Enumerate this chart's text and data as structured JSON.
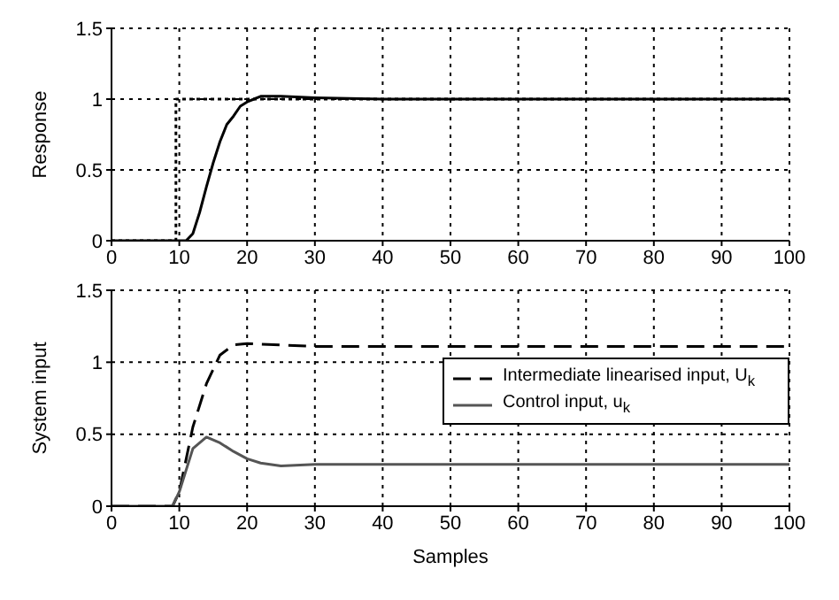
{
  "chart_data": [
    {
      "type": "line",
      "ylabel": "Response",
      "xlim": [
        0,
        100
      ],
      "ylim": [
        0,
        1.5
      ],
      "xticks": [
        0,
        10,
        20,
        30,
        40,
        50,
        60,
        70,
        80,
        90,
        100
      ],
      "yticks": [
        0,
        0.5,
        1,
        1.5
      ],
      "grid": true,
      "legend": false,
      "series": [
        {
          "color": "#000000",
          "line_style": "dotted",
          "x": [
            0,
            9.5,
            9.5,
            100
          ],
          "values": [
            0,
            0,
            1,
            1
          ]
        },
        {
          "color": "#000000",
          "line_style": "solid",
          "x": [
            0,
            11,
            12,
            13,
            14,
            15,
            16,
            17,
            18,
            19,
            20,
            21,
            22,
            25,
            30,
            40,
            100
          ],
          "values": [
            0,
            0,
            0.05,
            0.2,
            0.38,
            0.55,
            0.7,
            0.82,
            0.88,
            0.95,
            0.98,
            1,
            1.02,
            1.02,
            1.01,
            1,
            1
          ]
        }
      ]
    },
    {
      "type": "line",
      "xlabel": "Samples",
      "ylabel": "System input",
      "xlim": [
        0,
        100
      ],
      "ylim": [
        0,
        1.5
      ],
      "xticks": [
        0,
        10,
        20,
        30,
        40,
        50,
        60,
        70,
        80,
        90,
        100
      ],
      "yticks": [
        0,
        0.5,
        1,
        1.5
      ],
      "grid": true,
      "legend": "right",
      "series": [
        {
          "name": "Intermediate linearised input, U$_{k}$",
          "color": "#000000",
          "line_style": "dashed",
          "x": [
            0,
            9,
            10,
            12,
            14,
            16,
            18,
            20,
            25,
            30,
            100
          ],
          "values": [
            0,
            0,
            0.1,
            0.55,
            0.85,
            1.05,
            1.12,
            1.13,
            1.12,
            1.11,
            1.11
          ]
        },
        {
          "name": "Control input, u$_{k}$",
          "color": "#555555",
          "line_style": "solid",
          "x": [
            0,
            9,
            10,
            12,
            14,
            16,
            18,
            20,
            22,
            25,
            30,
            100
          ],
          "values": [
            0,
            0,
            0.1,
            0.4,
            0.48,
            0.44,
            0.38,
            0.33,
            0.3,
            0.28,
            0.29,
            0.29
          ]
        }
      ]
    }
  ]
}
